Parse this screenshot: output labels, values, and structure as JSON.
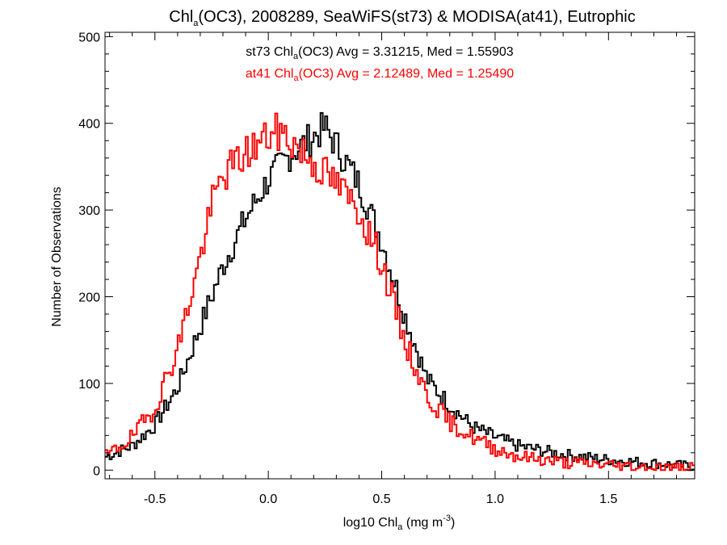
{
  "chart_data": {
    "type": "line",
    "title": {
      "pre": "Chl",
      "sub": "a",
      "post": "(OC3), 2008289, SeaWiFS(st73) & MODISA(at41), Eutrophic"
    },
    "xlabel": {
      "pre": "log10 Chl",
      "sub": "a",
      "mid": " (mg m",
      "sup": "-3",
      "post": ")"
    },
    "ylabel": "Number of Observations",
    "xlim": [
      -0.72,
      1.88
    ],
    "ylim": [
      -10,
      505
    ],
    "xticks": [
      {
        "value": -0.5,
        "label": "-0.5"
      },
      {
        "value": 0.0,
        "label": "0.0"
      },
      {
        "value": 0.5,
        "label": "0.5"
      },
      {
        "value": 1.0,
        "label": "1.0"
      },
      {
        "value": 1.5,
        "label": "1.5"
      }
    ],
    "yticks": [
      {
        "value": 0,
        "label": "0"
      },
      {
        "value": 100,
        "label": "100"
      },
      {
        "value": 200,
        "label": "200"
      },
      {
        "value": 300,
        "label": "300"
      },
      {
        "value": 400,
        "label": "400"
      },
      {
        "value": 500,
        "label": "500"
      }
    ],
    "bin_width": 0.01,
    "series": [
      {
        "name": "st73",
        "color": "#000000",
        "stats": {
          "pre": "st73 Chl",
          "sub": "a",
          "post": "(OC3) Avg = 3.31215, Med = 1.55903"
        },
        "anchors": [
          [
            -0.72,
            15
          ],
          [
            -0.6,
            28
          ],
          [
            -0.5,
            52
          ],
          [
            -0.4,
            95
          ],
          [
            -0.3,
            165
          ],
          [
            -0.2,
            235
          ],
          [
            -0.1,
            290
          ],
          [
            0.0,
            335
          ],
          [
            0.1,
            365
          ],
          [
            0.2,
            385
          ],
          [
            0.25,
            395
          ],
          [
            0.3,
            375
          ],
          [
            0.4,
            330
          ],
          [
            0.5,
            265
          ],
          [
            0.6,
            180
          ],
          [
            0.7,
            105
          ],
          [
            0.8,
            75
          ],
          [
            0.9,
            50
          ],
          [
            1.0,
            38
          ],
          [
            1.1,
            28
          ],
          [
            1.3,
            18
          ],
          [
            1.5,
            12
          ],
          [
            1.7,
            8
          ],
          [
            1.88,
            4
          ]
        ],
        "amp": 14,
        "seed": 7
      },
      {
        "name": "at41",
        "color": "#ff0000",
        "stats": {
          "pre": "at41 Chl",
          "sub": "a",
          "post": "(OC3) Avg = 2.12489, Med = 1.25490"
        },
        "anchors": [
          [
            -0.72,
            15
          ],
          [
            -0.6,
            38
          ],
          [
            -0.5,
            72
          ],
          [
            -0.4,
            140
          ],
          [
            -0.3,
            245
          ],
          [
            -0.25,
            305
          ],
          [
            -0.2,
            340
          ],
          [
            -0.1,
            365
          ],
          [
            0.0,
            385
          ],
          [
            0.05,
            390
          ],
          [
            0.1,
            380
          ],
          [
            0.2,
            355
          ],
          [
            0.3,
            330
          ],
          [
            0.4,
            300
          ],
          [
            0.5,
            240
          ],
          [
            0.6,
            150
          ],
          [
            0.7,
            85
          ],
          [
            0.8,
            55
          ],
          [
            0.9,
            38
          ],
          [
            1.0,
            25
          ],
          [
            1.1,
            16
          ],
          [
            1.3,
            9
          ],
          [
            1.5,
            6
          ],
          [
            1.7,
            3
          ],
          [
            1.88,
            2
          ]
        ],
        "amp": 16,
        "seed": 19
      }
    ]
  }
}
